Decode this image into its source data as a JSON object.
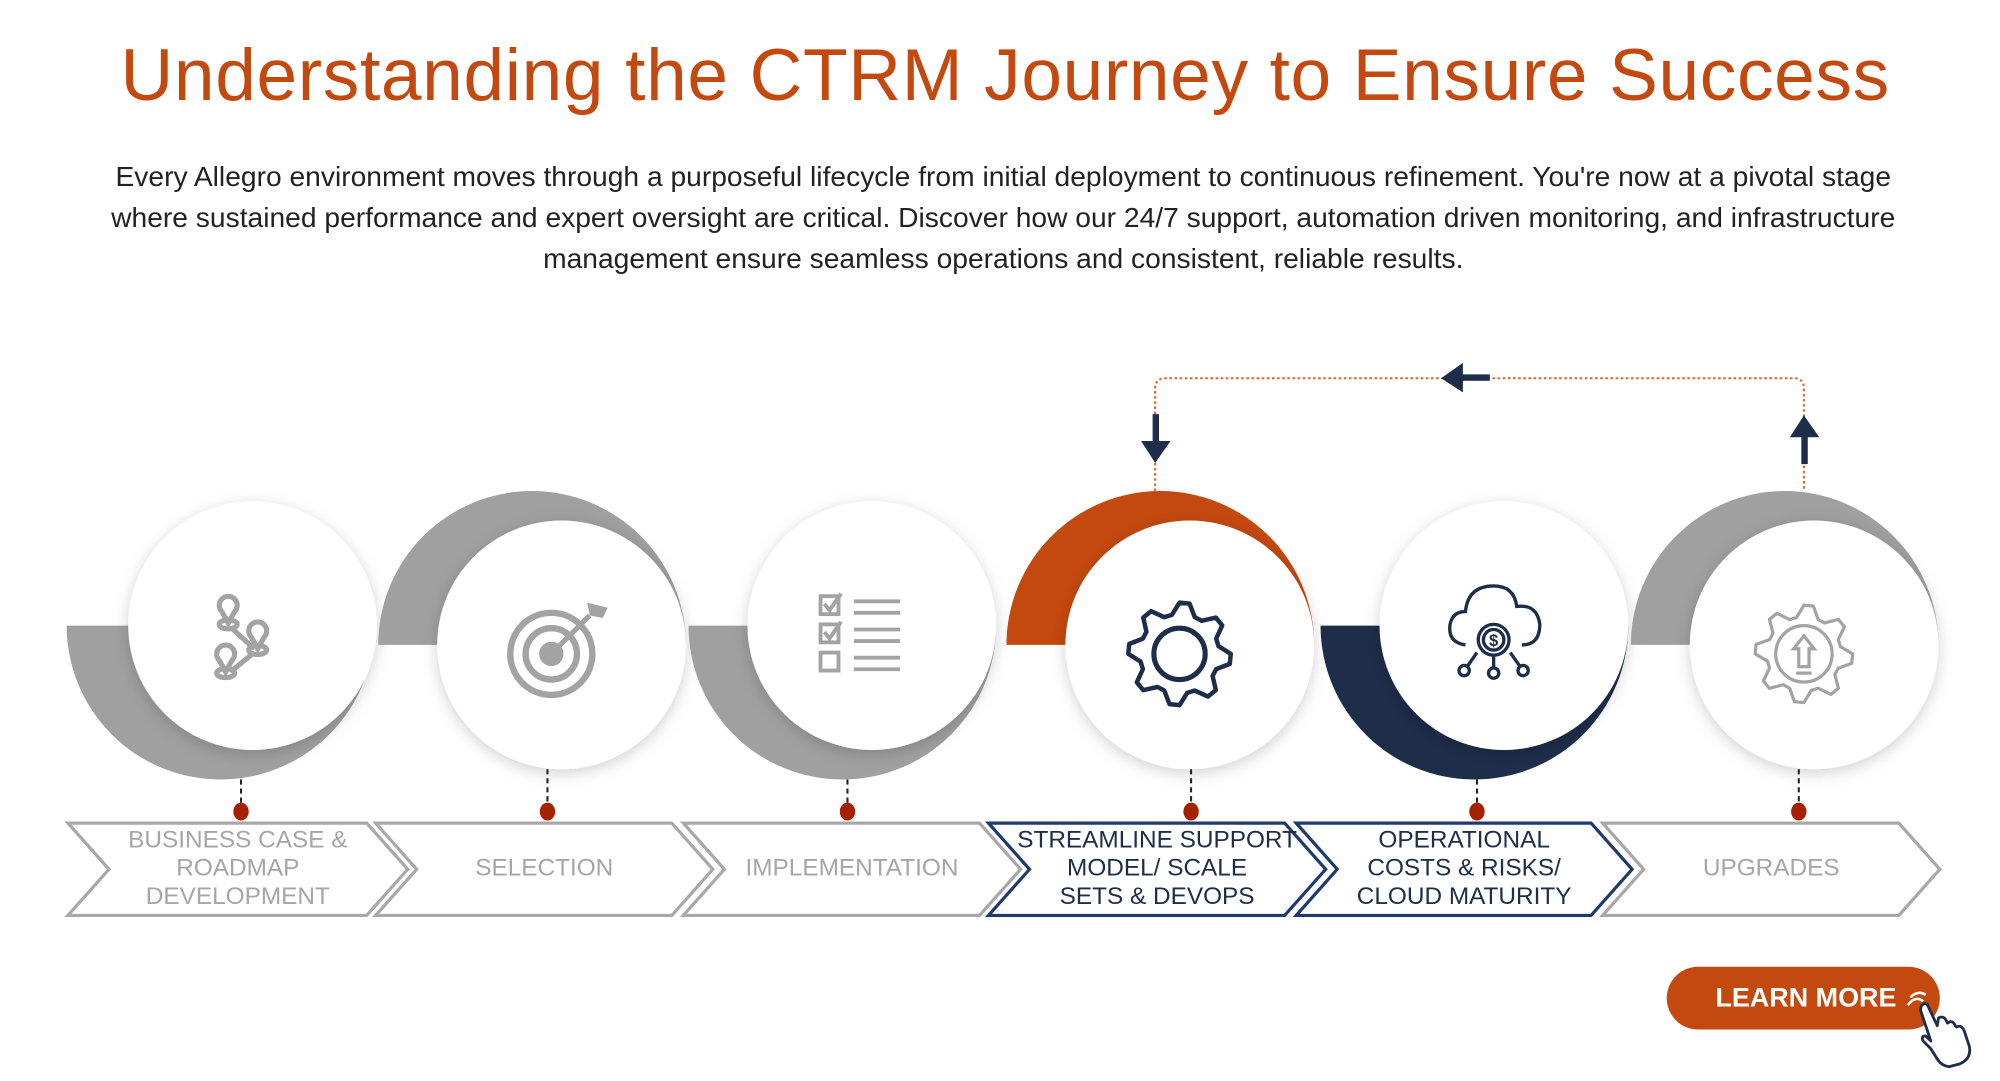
{
  "header": {
    "title": "Understanding the CTRM Journey to Ensure Success",
    "intro": "Every Allegro environment moves through a purposeful lifecycle from initial deployment to continuous refinement. You're now at a pivotal stage where sustained performance and expert oversight are critical. Discover how our 24/7 support, automation driven monitoring, and infrastructure management ensure seamless operations and consistent, reliable results."
  },
  "steps": [
    {
      "label": "BUSINESS CASE &\nROADMAP\nDEVELOPMENT",
      "icon": "roadmap-pins-icon",
      "accent": "#A0A0A0",
      "text_color": "#A6A6A6",
      "active": false
    },
    {
      "label": "SELECTION",
      "icon": "target-icon",
      "accent": "#A0A0A0",
      "text_color": "#A6A6A6",
      "active": false
    },
    {
      "label": "IMPLEMENTATION",
      "icon": "checklist-icon",
      "accent": "#A0A0A0",
      "text_color": "#A6A6A6",
      "active": false
    },
    {
      "label": "STREAMLINE SUPPORT\nMODEL/ SCALE\nSETS & DEVOPS",
      "icon": "gear-icon",
      "accent": "#C4490F",
      "text_color": "#1E2D4A",
      "active": true
    },
    {
      "label": "OPERATIONAL\nCOSTS & RISKS/\nCLOUD MATURITY",
      "icon": "cloud-dollar-icon",
      "accent": "#1E2D4A",
      "text_color": "#1E2D4A",
      "active": true
    },
    {
      "label": "UPGRADES",
      "icon": "gear-upgrade-icon",
      "accent": "#A0A0A0",
      "text_color": "#A6A6A6",
      "active": false
    }
  ],
  "cta": {
    "label": "LEARN MORE",
    "icon": "hand-pointer-icon",
    "color": "#C4490F"
  },
  "colors": {
    "orange": "#C4490F",
    "navy": "#1E2D4A",
    "gray": "#A0A0A0",
    "dot": "#A62100",
    "chevron_active": "#1E3A6E"
  }
}
